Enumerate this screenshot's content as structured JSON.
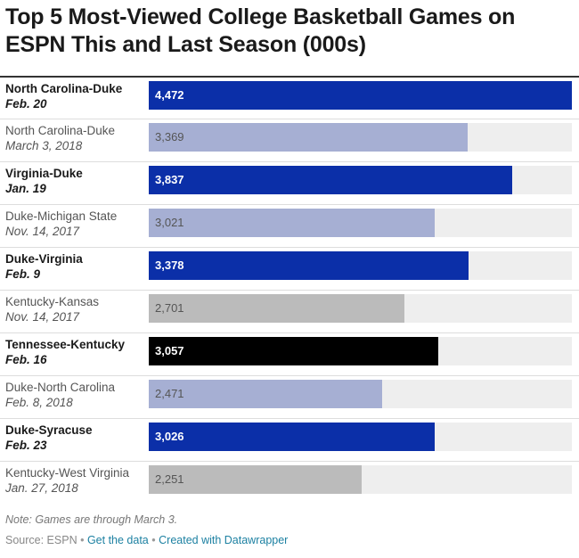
{
  "chart_data": {
    "type": "bar",
    "orientation": "horizontal",
    "title": "Top 5 Most-Viewed College Basketball Games on ESPN This and Last Season (000s)",
    "xlim": [
      0,
      4472
    ],
    "rows": [
      {
        "name": "North Carolina-Duke",
        "date": "Feb. 20",
        "value": 4472,
        "value_label": "4,472",
        "season": "current",
        "color": "#0b2fa8"
      },
      {
        "name": "North Carolina-Duke",
        "date": "March 3, 2018",
        "value": 3369,
        "value_label": "3,369",
        "season": "previous",
        "color": "#a6afd3"
      },
      {
        "name": "Virginia-Duke",
        "date": "Jan. 19",
        "value": 3837,
        "value_label": "3,837",
        "season": "current",
        "color": "#0b2fa8"
      },
      {
        "name": "Duke-Michigan State",
        "date": "Nov. 14, 2017",
        "value": 3021,
        "value_label": "3,021",
        "season": "previous",
        "color": "#a6afd3"
      },
      {
        "name": "Duke-Virginia",
        "date": "Feb. 9",
        "value": 3378,
        "value_label": "3,378",
        "season": "current",
        "color": "#0b2fa8"
      },
      {
        "name": "Kentucky-Kansas",
        "date": "Nov. 14, 2017",
        "value": 2701,
        "value_label": "2,701",
        "season": "previous",
        "color": "#bbbbbb"
      },
      {
        "name": "Tennessee-Kentucky",
        "date": "Feb. 16",
        "value": 3057,
        "value_label": "3,057",
        "season": "current",
        "color": "#000000"
      },
      {
        "name": "Duke-North Carolina",
        "date": "Feb. 8, 2018",
        "value": 2471,
        "value_label": "2,471",
        "season": "previous",
        "color": "#a6afd3"
      },
      {
        "name": "Duke-Syracuse",
        "date": "Feb. 23",
        "value": 3026,
        "value_label": "3,026",
        "season": "current",
        "color": "#0b2fa8"
      },
      {
        "name": "Kentucky-West Virginia",
        "date": "Jan. 27, 2018",
        "value": 2251,
        "value_label": "2,251",
        "season": "previous",
        "color": "#bbbbbb"
      }
    ]
  },
  "note": "Note: Games are through March 3.",
  "source": {
    "label": "Source: ESPN",
    "sep": "•",
    "get_data": "Get the data",
    "created_with": "Created with Datawrapper"
  }
}
